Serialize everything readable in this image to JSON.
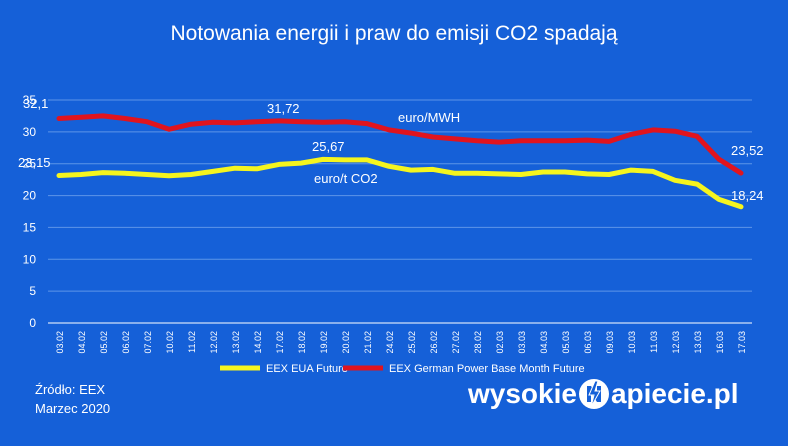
{
  "page": {
    "background": "#1560d8"
  },
  "chart_data": {
    "type": "line",
    "title": "Notowania energii i praw do emisji CO2 spadają",
    "xlabel": "",
    "ylabel": "",
    "ylim": [
      0,
      35
    ],
    "yticks": [
      0,
      5,
      10,
      15,
      20,
      25,
      30,
      35
    ],
    "grid": true,
    "legend_position": "bottom",
    "categories": [
      "03.02",
      "04.02",
      "05.02",
      "06.02",
      "07.02",
      "10.02",
      "11.02",
      "12.02",
      "13.02",
      "14.02",
      "17.02",
      "18.02",
      "19.02",
      "20.02",
      "21.02",
      "24.02",
      "25.02",
      "26.02",
      "27.02",
      "28.02",
      "02.03",
      "03.03",
      "04.03",
      "05.03",
      "06.03",
      "09.03",
      "10.03",
      "11.03",
      "12.03",
      "13.03",
      "16.03",
      "17.03"
    ],
    "series": [
      {
        "name": "EEX EUA Future",
        "color": "#f5f51e",
        "values": [
          23.15,
          23.3,
          23.6,
          23.5,
          23.3,
          23.1,
          23.3,
          23.8,
          24.3,
          24.2,
          24.9,
          25.1,
          25.67,
          25.6,
          25.6,
          24.6,
          24.0,
          24.1,
          23.5,
          23.5,
          23.4,
          23.3,
          23.7,
          23.7,
          23.4,
          23.3,
          24.0,
          23.8,
          22.4,
          21.8,
          19.4,
          18.24
        ]
      },
      {
        "name": "EEX German Power Base Month Future",
        "color": "#e0141e",
        "values": [
          32.1,
          32.3,
          32.5,
          32.1,
          31.6,
          30.4,
          31.2,
          31.5,
          31.4,
          31.6,
          31.72,
          31.6,
          31.5,
          31.6,
          31.3,
          30.3,
          29.8,
          29.2,
          28.9,
          28.6,
          28.4,
          28.6,
          28.6,
          28.6,
          28.7,
          28.5,
          29.6,
          30.3,
          30.1,
          29.3,
          25.7,
          23.52
        ]
      }
    ],
    "annotations": {
      "power_start": "32,1",
      "power_peak": "31,72",
      "power_end": "23,52",
      "eua_start": "23,15",
      "eua_peak": "25,67",
      "eua_end": "18,24",
      "power_unit": "euro/MWH",
      "eua_unit": "euro/t CO2"
    },
    "axis_color": "#ffffff",
    "gridline_color": "#5d95e8"
  },
  "footer": {
    "source_line1": "Źródło: EEX",
    "source_line2": "Marzec 2020",
    "brand_part1": "wysokie",
    "brand_part2": "apiecie.pl",
    "brand_logo_icon": "lightning-n-icon"
  }
}
